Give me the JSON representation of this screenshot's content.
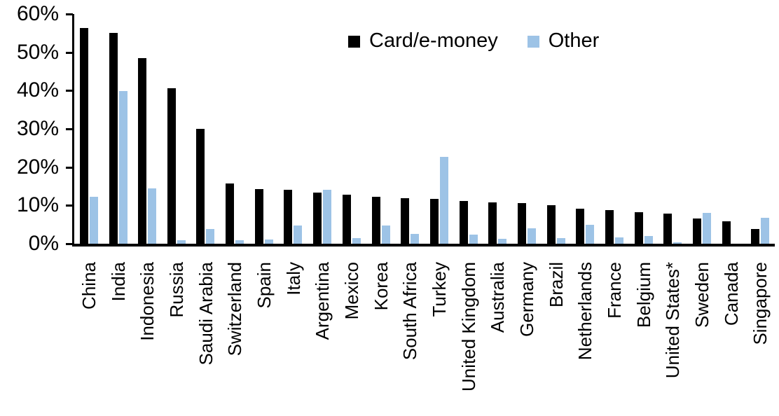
{
  "chart_data": {
    "type": "bar",
    "title": "",
    "xlabel": "",
    "ylabel": "",
    "ylim": [
      0,
      60
    ],
    "yticks": [
      0,
      10,
      20,
      30,
      40,
      50,
      60
    ],
    "ytick_suffix": "%",
    "grid": false,
    "legend_position": "top-center",
    "categories": [
      "China",
      "India",
      "Indonesia",
      "Russia",
      "Saudi Arabia",
      "Switzerland",
      "Spain",
      "Italy",
      "Argentina",
      "Mexico",
      "Korea",
      "South Africa",
      "Turkey",
      "United Kingdom",
      "Australia",
      "Germany",
      "Brazil",
      "Netherlands",
      "France",
      "Belgium",
      "United States*",
      "Sweden",
      "Canada",
      "Singapore"
    ],
    "series": [
      {
        "name": "Card/e-money",
        "color": "#000000",
        "values": [
          56.4,
          55.1,
          48.5,
          40.6,
          30.0,
          15.7,
          14.2,
          14.1,
          13.4,
          12.8,
          12.2,
          11.9,
          11.7,
          11.1,
          10.8,
          10.7,
          10.0,
          9.2,
          8.7,
          8.3,
          7.9,
          6.6,
          5.9,
          3.9
        ]
      },
      {
        "name": "Other",
        "color": "#9DC3E6",
        "values": [
          12.2,
          39.8,
          14.5,
          1.0,
          3.9,
          0.9,
          1.1,
          4.7,
          14.0,
          1.5,
          4.7,
          2.5,
          22.7,
          2.4,
          1.2,
          4.0,
          1.5,
          5.0,
          1.7,
          2.0,
          0.3,
          8.1,
          0.0,
          6.7
        ]
      }
    ]
  }
}
